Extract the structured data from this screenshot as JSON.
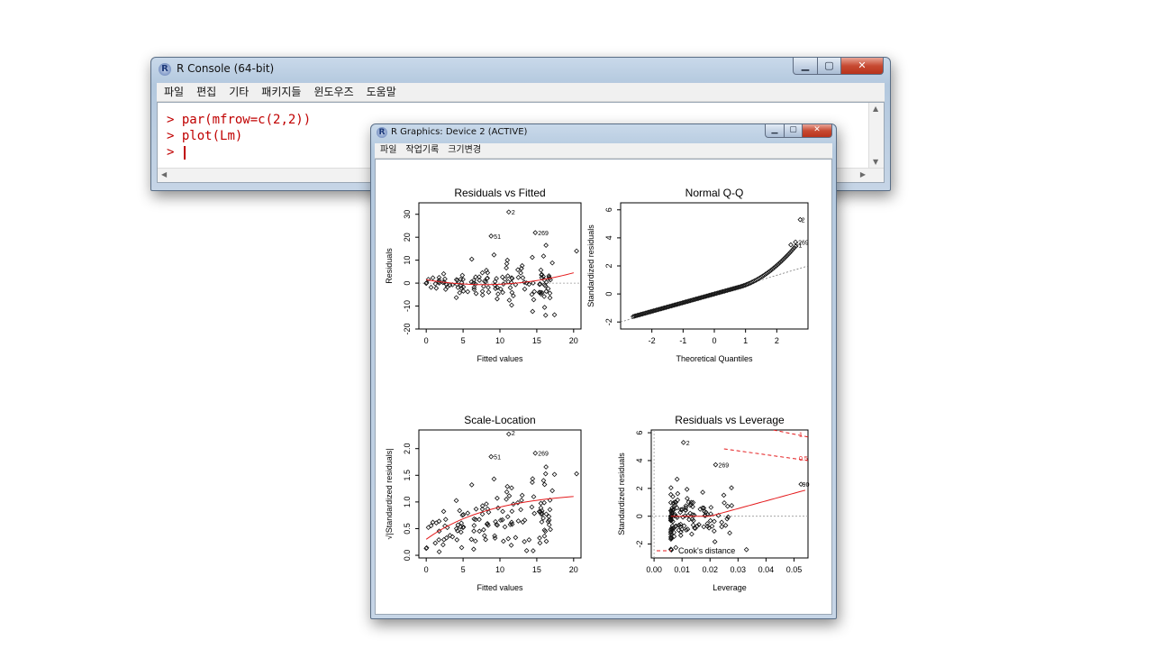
{
  "console": {
    "title": "R Console (64-bit)",
    "icon": "R",
    "menu": [
      "파일",
      "편집",
      "기타",
      "패키지들",
      "윈도우즈",
      "도움말"
    ],
    "lines": [
      {
        "prompt": ">",
        "cmd": "par(mfrow=c(2,2))"
      },
      {
        "prompt": ">",
        "cmd": "plot(Lm)"
      },
      {
        "prompt": ">",
        "cmd": ""
      }
    ]
  },
  "graphics": {
    "title": "R Graphics: Device 2 (ACTIVE)",
    "icon": "R",
    "menu": [
      "파일",
      "작업기록",
      "크기변경"
    ]
  },
  "colors": {
    "prompt": "#c00000",
    "fit_line": "#e41a1c",
    "points": "#111111"
  },
  "chart_data": [
    {
      "type": "scatter",
      "title": "Residuals vs Fitted",
      "xlabel": "Fitted values",
      "ylabel": "Residuals",
      "xlim": [
        -1,
        21
      ],
      "ylim": [
        -20,
        35
      ],
      "xticks": [
        0,
        5,
        10,
        15,
        20
      ],
      "yticks": [
        -20,
        -10,
        0,
        10,
        20,
        30
      ],
      "annotations": [
        {
          "label": "2",
          "x": 11.2,
          "y": 31
        },
        {
          "label": "51",
          "x": 8.8,
          "y": 20.5
        },
        {
          "label": "269",
          "x": 14.8,
          "y": 22
        }
      ],
      "reference_line": 0
    },
    {
      "type": "scatter",
      "title": "Normal Q-Q",
      "xlabel": "Theoretical Quantiles",
      "ylabel": "Standardized residuals",
      "xlim": [
        -3,
        3
      ],
      "ylim": [
        -2.5,
        6.5
      ],
      "xticks": [
        -2,
        -1,
        0,
        1,
        2
      ],
      "yticks": [
        -2,
        0,
        2,
        4,
        6
      ],
      "annotations": [
        {
          "label": "2",
          "x": 2.7,
          "y": 5.3
        },
        {
          "label": "51",
          "x": 2.5,
          "y": 3.5
        },
        {
          "label": "269",
          "x": 2.6,
          "y": 3.7
        }
      ],
      "reference_line": "qq"
    },
    {
      "type": "scatter",
      "title": "Scale-Location",
      "xlabel": "Fitted values",
      "ylabel": "√|Standardized residuals|",
      "xlim": [
        -1,
        21
      ],
      "ylim": [
        -0.05,
        2.35
      ],
      "xticks": [
        0,
        5,
        10,
        15,
        20
      ],
      "yticks": [
        0.0,
        0.5,
        1.0,
        1.5,
        2.0
      ],
      "ytick_labels": [
        "0.0",
        "0.5",
        "1.0",
        "1.5",
        "2.0"
      ],
      "annotations": [
        {
          "label": "2",
          "x": 11.2,
          "y": 2.3
        },
        {
          "label": "51",
          "x": 8.8,
          "y": 1.85
        },
        {
          "label": "269",
          "x": 14.8,
          "y": 1.92
        }
      ]
    },
    {
      "type": "scatter",
      "title": "Residuals vs Leverage",
      "xlabel": "Leverage",
      "ylabel": "Standardized residuals",
      "xlim": [
        -0.001,
        0.055
      ],
      "ylim": [
        -3,
        6.2
      ],
      "xticks": [
        0.0,
        0.01,
        0.02,
        0.03,
        0.04,
        0.05
      ],
      "xtick_labels": [
        "0.00",
        "0.01",
        "0.02",
        "0.03",
        "0.04",
        "0.05"
      ],
      "yticks": [
        -2,
        0,
        2,
        4,
        6
      ],
      "annotations": [
        {
          "label": "2",
          "x": 0.0105,
          "y": 5.3
        },
        {
          "label": "269",
          "x": 0.022,
          "y": 3.7
        },
        {
          "label": "90",
          "x": 0.052,
          "y": 2.3
        }
      ],
      "contour_labels": [
        {
          "label": "1",
          "y": 5.7
        },
        {
          "label": "0.5",
          "y": 4.0
        }
      ],
      "legend": "Cook's distance"
    }
  ]
}
